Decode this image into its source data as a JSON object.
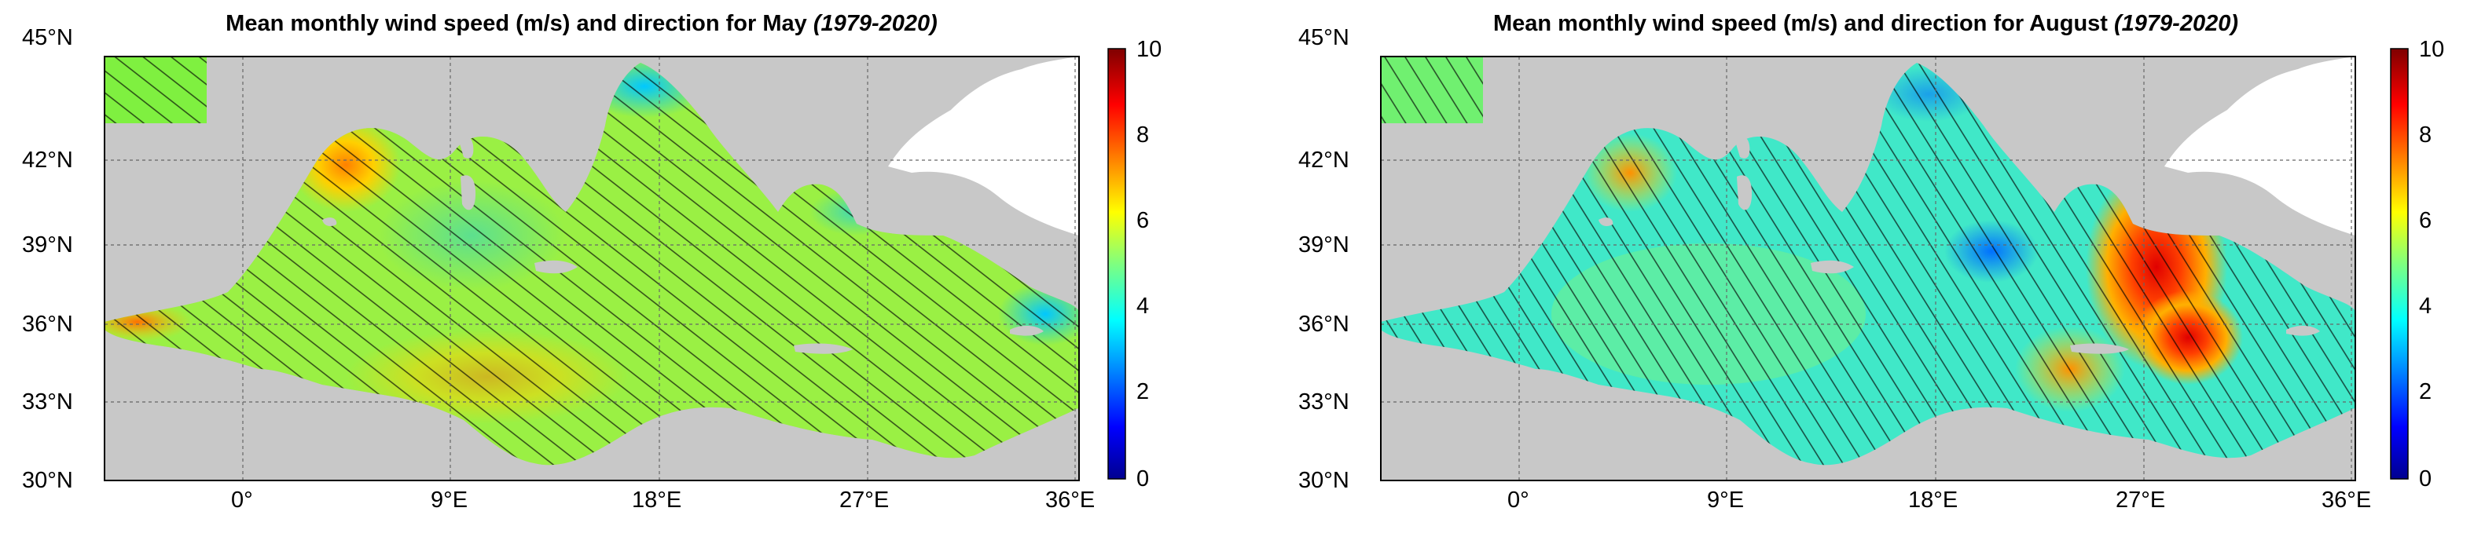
{
  "figure": {
    "panels": [
      {
        "id": "may",
        "title_main": "Mean monthly wind speed (m/s) and direction for May",
        "title_period": "(1979-2020)",
        "lat_labels": [
          "45°N",
          "42°N",
          "39°N",
          "36°N",
          "33°N",
          "30°N"
        ],
        "lon_labels": [
          "0°",
          "9°E",
          "18°E",
          "27°E",
          "36°E"
        ],
        "colorbar_labels": [
          "10",
          "8",
          "6",
          "4",
          "2",
          "0"
        ],
        "hotspot_note": "Strongest winds in Gulf of Lion and Alboran Sea; broad 5-6 m/s field over central basin"
      },
      {
        "id": "august",
        "title_main": "Mean monthly wind speed (m/s) and direction for August",
        "title_period": "(1979-2020)",
        "lat_labels": [
          "45°N",
          "42°N",
          "39°N",
          "36°N",
          "33°N",
          "30°N"
        ],
        "lon_labels": [
          "0°",
          "9°E",
          "18°E",
          "27°E",
          "36°E"
        ],
        "colorbar_labels": [
          "10",
          "8",
          "6",
          "4",
          "2",
          "0"
        ],
        "hotspot_note": "Etesian wind maximum (~9 m/s) over the Aegean and south of Crete"
      }
    ],
    "colorscale": [
      "#00008f",
      "#0000ff",
      "#00ffff",
      "#7fff7f",
      "#ffff00",
      "#ff7f00",
      "#ff0000",
      "#7f0000"
    ],
    "land_color": "#c8c8c8",
    "unit": "m/s"
  }
}
